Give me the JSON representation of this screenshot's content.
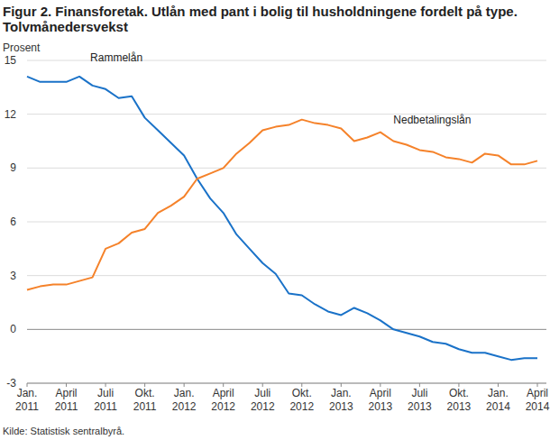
{
  "chart_data": {
    "type": "line",
    "title": "Figur 2. Finansforetak. Utlån med pant i bolig til husholdningene fordelt på type. Tolvmånedersvekst",
    "y_label": "Prosent",
    "source": "Kilde: Statistisk sentralbyrå.",
    "categories": [
      "Jan. 2011",
      null,
      null,
      "April 2011",
      null,
      null,
      "Juli 2011",
      null,
      null,
      "Okt. 2011",
      null,
      null,
      "Jan. 2012",
      null,
      null,
      "April 2012",
      null,
      null,
      "Juli 2012",
      null,
      null,
      "Okt. 2012",
      null,
      null,
      "Jan. 2013",
      null,
      null,
      "April 2013",
      null,
      null,
      "Juli 2013",
      null,
      null,
      "Okt. 2013",
      null,
      null,
      "Jan. 2014",
      null,
      null,
      "April 2014"
    ],
    "series": [
      {
        "name": "Rammelån",
        "color": "#1a72c8",
        "values": [
          14.1,
          13.8,
          13.8,
          13.8,
          14.1,
          13.6,
          13.4,
          12.9,
          13.0,
          11.8,
          11.1,
          10.4,
          9.7,
          8.4,
          7.3,
          6.5,
          5.3,
          4.5,
          3.7,
          3.1,
          2.0,
          1.9,
          1.4,
          1.0,
          0.8,
          1.2,
          0.9,
          0.5,
          0.0,
          -0.2,
          -0.4,
          -0.7,
          -0.8,
          -1.1,
          -1.3,
          -1.3,
          -1.5,
          -1.7,
          -1.6,
          -1.6
        ]
      },
      {
        "name": "Nedbetalingslån",
        "color": "#f5822a",
        "values": [
          2.2,
          2.4,
          2.5,
          2.5,
          2.7,
          2.9,
          4.5,
          4.8,
          5.4,
          5.6,
          6.5,
          6.9,
          7.4,
          8.4,
          8.7,
          9.0,
          9.8,
          10.4,
          11.1,
          11.3,
          11.4,
          11.7,
          11.5,
          11.4,
          11.2,
          10.5,
          10.7,
          11.0,
          10.5,
          10.3,
          10.0,
          9.9,
          9.6,
          9.5,
          9.3,
          9.8,
          9.7,
          9.2,
          9.2,
          9.4
        ]
      }
    ],
    "ylim": [
      -3,
      15
    ],
    "yticks": [
      -3,
      0,
      3,
      6,
      9,
      12,
      15
    ],
    "grid": true
  }
}
